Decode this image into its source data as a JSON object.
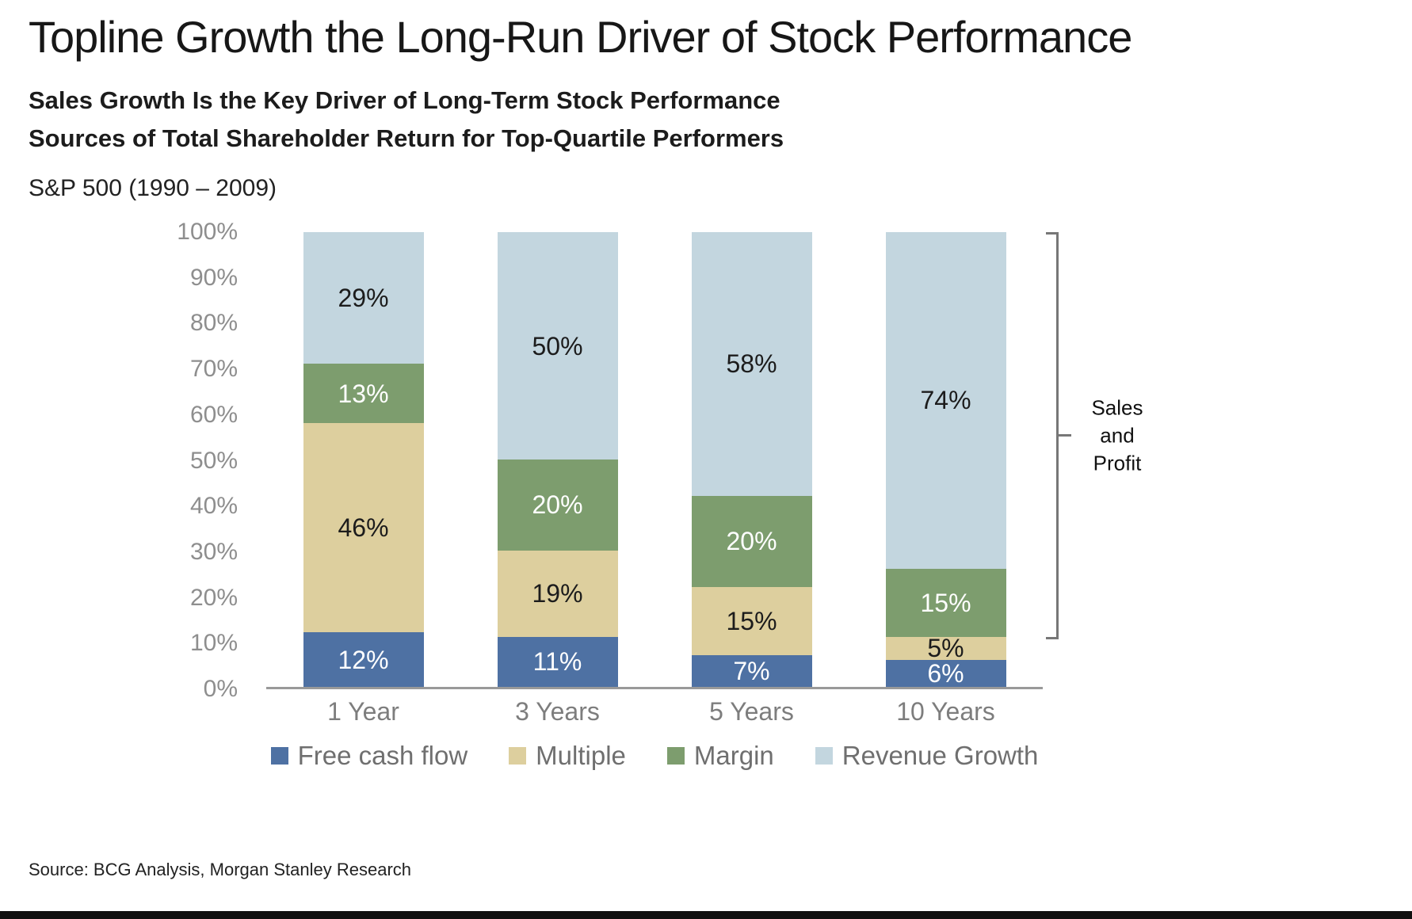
{
  "header": {
    "title": "Topline Growth the Long-Run Driver of Stock Performance",
    "subtitle_line1": "Sales Growth Is the Key Driver of Long-Term Stock Performance",
    "subtitle_line2": "Sources of Total Shareholder Return for Top-Quartile Performers",
    "period": "S&P 500 (1990 – 2009)"
  },
  "chart_data": {
    "type": "bar",
    "stacked": true,
    "title": "Sources of Total Shareholder Return for Top-Quartile Performers",
    "categories": [
      "1 Year",
      "3 Years",
      "5 Years",
      "10 Years"
    ],
    "series": [
      {
        "name": "Free cash flow",
        "color": "#4e71a3",
        "label_color": "#ffffff",
        "values": [
          12,
          11,
          7,
          6
        ]
      },
      {
        "name": "Multiple",
        "color": "#ddcf9e",
        "label_color": "#1c1c1c",
        "values": [
          46,
          19,
          15,
          5
        ]
      },
      {
        "name": "Margin",
        "color": "#7d9d6e",
        "label_color": "#ffffff",
        "values": [
          13,
          20,
          20,
          15
        ]
      },
      {
        "name": "Revenue Growth",
        "color": "#c3d6df",
        "label_color": "#1c1c1c",
        "values": [
          29,
          50,
          58,
          74
        ]
      }
    ],
    "ylim": [
      0,
      100
    ],
    "yticks": [
      "100%",
      "90%",
      "80%",
      "70%",
      "60%",
      "50%",
      "40%",
      "30%",
      "20%",
      "10%",
      "0%"
    ],
    "grid": false,
    "legend_position": "bottom",
    "annotation": {
      "label": "Sales and Profit",
      "bracket_from_pct": 11,
      "bracket_to_pct": 100,
      "applies_to": "10 Years"
    }
  },
  "footer": {
    "source": "Source: BCG Analysis, Morgan Stanley Research"
  }
}
